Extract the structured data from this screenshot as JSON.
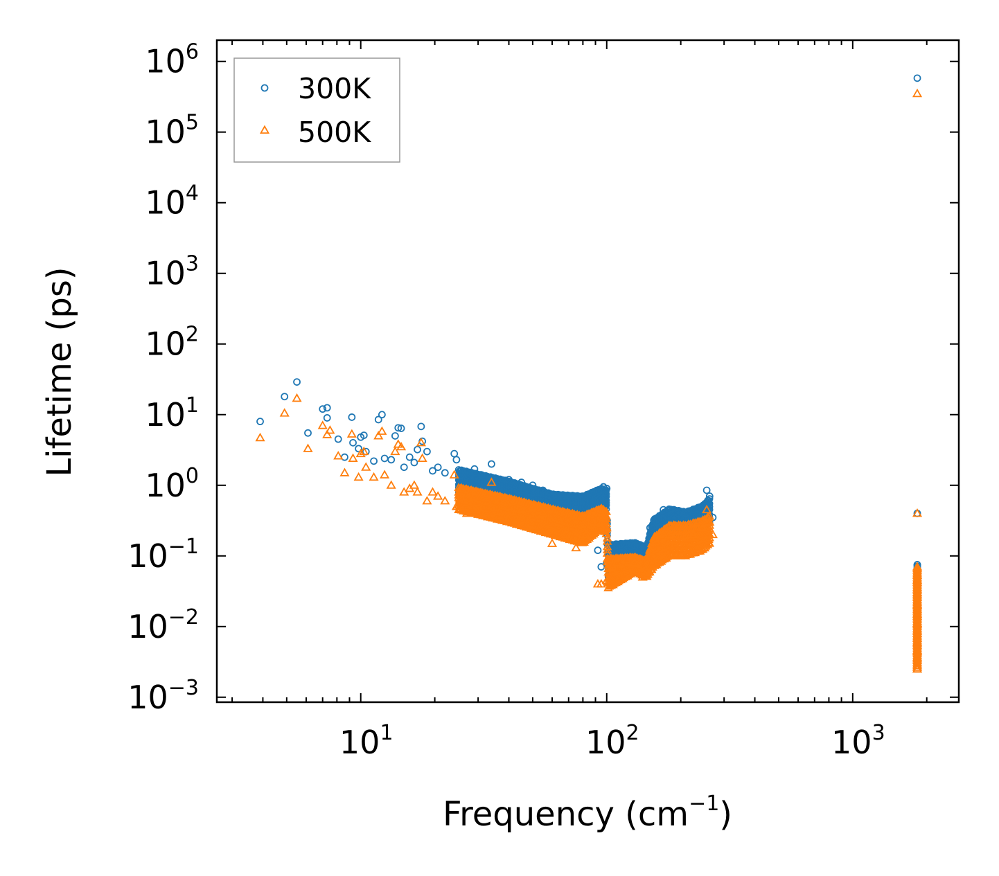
{
  "chart_data": {
    "type": "scatter",
    "xscale": "log",
    "yscale": "log",
    "xlabel": "Frequency (cm",
    "xlabel_sup": "−1",
    "xlabel_end": ")",
    "ylabel": "Lifetime (ps)",
    "xlim": [
      2.6,
      2700
    ],
    "ylim": [
      0.00085,
      2000000
    ],
    "x_ticks": [
      {
        "value": 10,
        "base": "10",
        "exp": "1"
      },
      {
        "value": 100,
        "base": "10",
        "exp": "2"
      },
      {
        "value": 1000,
        "base": "10",
        "exp": "3"
      }
    ],
    "y_ticks": [
      {
        "value": 0.001,
        "base": "10",
        "exp": "−3"
      },
      {
        "value": 0.01,
        "base": "10",
        "exp": "−2"
      },
      {
        "value": 0.1,
        "base": "10",
        "exp": "−1"
      },
      {
        "value": 1,
        "base": "10",
        "exp": "0"
      },
      {
        "value": 10,
        "base": "10",
        "exp": "1"
      },
      {
        "value": 100,
        "base": "10",
        "exp": "2"
      },
      {
        "value": 1000,
        "base": "10",
        "exp": "3"
      },
      {
        "value": 10000,
        "base": "10",
        "exp": "4"
      },
      {
        "value": 100000,
        "base": "10",
        "exp": "5"
      },
      {
        "value": 1000000,
        "base": "10",
        "exp": "6"
      }
    ],
    "legend": {
      "location": "upper-left"
    },
    "series": [
      {
        "name": "300K",
        "marker": "circle",
        "color": "#1f77b4",
        "points": [
          [
            3.9,
            8.0
          ],
          [
            4.9,
            18
          ],
          [
            5.5,
            29
          ],
          [
            6.1,
            5.5
          ],
          [
            7.0,
            12
          ],
          [
            7.3,
            12.5
          ],
          [
            7.3,
            9.0
          ],
          [
            8.1,
            4.5
          ],
          [
            8.6,
            2.5
          ],
          [
            9.2,
            9.2
          ],
          [
            9.3,
            4.0
          ],
          [
            9.8,
            3.3
          ],
          [
            10.0,
            4.8
          ],
          [
            10.3,
            5.1
          ],
          [
            10.5,
            3.0
          ],
          [
            11.3,
            2.2
          ],
          [
            11.8,
            8.5
          ],
          [
            12.2,
            10
          ],
          [
            12.5,
            2.4
          ],
          [
            13.3,
            2.3
          ],
          [
            13.8,
            5.0
          ],
          [
            14.2,
            6.5
          ],
          [
            14.6,
            6.4
          ],
          [
            15.0,
            1.8
          ],
          [
            15.8,
            2.5
          ],
          [
            16.5,
            2.1
          ],
          [
            17.0,
            3.2
          ],
          [
            17.6,
            6.8
          ],
          [
            17.8,
            4.2
          ],
          [
            18.6,
            3.0
          ],
          [
            19.6,
            1.6
          ],
          [
            20.6,
            1.8
          ],
          [
            22.0,
            1.5
          ],
          [
            24.0,
            2.8
          ],
          [
            24.5,
            2.3
          ],
          [
            27.0,
            1.5
          ],
          [
            29.0,
            1.7
          ],
          [
            31.0,
            1.4
          ],
          [
            34.0,
            2.0
          ],
          [
            36.0,
            1.2
          ],
          [
            40.0,
            1.2
          ],
          [
            45.0,
            1.1
          ],
          [
            50.0,
            1.0
          ],
          [
            55.0,
            0.85
          ],
          [
            60.0,
            0.7
          ],
          [
            68.0,
            0.6
          ],
          [
            75.0,
            0.55
          ],
          [
            82.0,
            0.5
          ],
          [
            88.0,
            0.45
          ],
          [
            93.0,
            0.8
          ],
          [
            97.0,
            0.95
          ],
          [
            100.0,
            0.9
          ],
          [
            92.0,
            0.12
          ],
          [
            95.0,
            0.07
          ],
          [
            100.0,
            0.08
          ],
          [
            105.0,
            0.1
          ],
          [
            110.0,
            0.14
          ],
          [
            120.0,
            0.15
          ],
          [
            130.0,
            0.14
          ],
          [
            140.0,
            0.09
          ],
          [
            150.0,
            0.25
          ],
          [
            160.0,
            0.3
          ],
          [
            170.0,
            0.45
          ],
          [
            180.0,
            0.45
          ],
          [
            195.0,
            0.4
          ],
          [
            210.0,
            0.4
          ],
          [
            225.0,
            0.35
          ],
          [
            245.0,
            0.5
          ],
          [
            255.0,
            0.85
          ],
          [
            262.0,
            0.7
          ],
          [
            270.0,
            0.35
          ],
          [
            1830,
            580000
          ],
          [
            1830,
            0.4
          ],
          [
            1830,
            0.075
          ],
          [
            1830,
            0.05
          ],
          [
            1830,
            0.035
          ],
          [
            1830,
            0.025
          ],
          [
            1830,
            0.018
          ],
          [
            1830,
            0.013
          ],
          [
            1830,
            0.009
          ],
          [
            1830,
            0.007
          ],
          [
            1830,
            0.005
          ],
          [
            1830,
            0.004
          ],
          [
            1830,
            0.003
          ]
        ],
        "band": [
          [
            25,
            0.8,
            1.8
          ],
          [
            40,
            0.7,
            1.2
          ],
          [
            60,
            0.4,
            0.8
          ],
          [
            80,
            0.35,
            0.75
          ],
          [
            95,
            0.55,
            0.95
          ],
          [
            100,
            0.45,
            0.9
          ],
          [
            101,
            0.05,
            0.16
          ],
          [
            130,
            0.11,
            0.16
          ],
          [
            145,
            0.08,
            0.14
          ],
          [
            155,
            0.16,
            0.35
          ],
          [
            180,
            0.22,
            0.5
          ],
          [
            210,
            0.2,
            0.45
          ],
          [
            245,
            0.25,
            0.55
          ],
          [
            262,
            0.3,
            0.7
          ]
        ]
      },
      {
        "name": "500K",
        "marker": "triangle",
        "color": "#ff7f0e",
        "points": [
          [
            3.9,
            4.7
          ],
          [
            4.9,
            10.5
          ],
          [
            5.5,
            17
          ],
          [
            6.1,
            3.3
          ],
          [
            7.0,
            7.0
          ],
          [
            7.3,
            5.2
          ],
          [
            7.5,
            6.0
          ],
          [
            8.1,
            2.6
          ],
          [
            8.6,
            1.5
          ],
          [
            9.2,
            5.3
          ],
          [
            9.3,
            2.4
          ],
          [
            9.8,
            1.3
          ],
          [
            10.0,
            2.8
          ],
          [
            10.3,
            3.0
          ],
          [
            10.5,
            1.8
          ],
          [
            11.3,
            1.3
          ],
          [
            11.8,
            5.0
          ],
          [
            12.2,
            5.8
          ],
          [
            12.5,
            1.4
          ],
          [
            13.3,
            1.0
          ],
          [
            13.8,
            3.0
          ],
          [
            14.2,
            3.8
          ],
          [
            14.6,
            3.5
          ],
          [
            15.0,
            0.8
          ],
          [
            15.8,
            0.9
          ],
          [
            16.5,
            1.0
          ],
          [
            17.0,
            0.8
          ],
          [
            17.6,
            4.0
          ],
          [
            17.8,
            2.4
          ],
          [
            18.6,
            0.6
          ],
          [
            19.6,
            0.8
          ],
          [
            20.6,
            0.7
          ],
          [
            22.0,
            0.6
          ],
          [
            24.0,
            1.4
          ],
          [
            24.5,
            0.5
          ],
          [
            27.0,
            0.4
          ],
          [
            29.0,
            0.7
          ],
          [
            31.0,
            0.4
          ],
          [
            34.0,
            1.1
          ],
          [
            36.0,
            0.7
          ],
          [
            40.0,
            0.5
          ],
          [
            45.0,
            0.45
          ],
          [
            50.0,
            0.5
          ],
          [
            55.0,
            0.4
          ],
          [
            60.0,
            0.15
          ],
          [
            68.0,
            0.2
          ],
          [
            75.0,
            0.13
          ],
          [
            82.0,
            0.2
          ],
          [
            88.0,
            0.25
          ],
          [
            93.0,
            0.3
          ],
          [
            97.0,
            0.45
          ],
          [
            100.0,
            0.25
          ],
          [
            92.0,
            0.04
          ],
          [
            95.0,
            0.04
          ],
          [
            100.0,
            0.045
          ],
          [
            105.0,
            0.07
          ],
          [
            110.0,
            0.08
          ],
          [
            120.0,
            0.09
          ],
          [
            130.0,
            0.08
          ],
          [
            140.0,
            0.05
          ],
          [
            150.0,
            0.12
          ],
          [
            160.0,
            0.15
          ],
          [
            170.0,
            0.2
          ],
          [
            180.0,
            0.2
          ],
          [
            195.0,
            0.15
          ],
          [
            210.0,
            0.18
          ],
          [
            225.0,
            0.2
          ],
          [
            245.0,
            0.25
          ],
          [
            255.0,
            0.45
          ],
          [
            262.0,
            0.3
          ],
          [
            270.0,
            0.2
          ],
          [
            1830,
            350000
          ],
          [
            1830,
            0.4
          ],
          [
            1830,
            0.07
          ],
          [
            1830,
            0.045
          ],
          [
            1830,
            0.03
          ],
          [
            1830,
            0.02
          ],
          [
            1830,
            0.015
          ],
          [
            1830,
            0.011
          ],
          [
            1830,
            0.008
          ],
          [
            1830,
            0.006
          ],
          [
            1830,
            0.0045
          ],
          [
            1830,
            0.0035
          ],
          [
            1830,
            0.0025
          ]
        ],
        "band": [
          [
            25,
            0.45,
            1.0
          ],
          [
            40,
            0.3,
            0.7
          ],
          [
            60,
            0.2,
            0.5
          ],
          [
            80,
            0.15,
            0.4
          ],
          [
            95,
            0.25,
            0.5
          ],
          [
            100,
            0.2,
            0.45
          ],
          [
            101,
            0.035,
            0.1
          ],
          [
            130,
            0.06,
            0.1
          ],
          [
            145,
            0.05,
            0.09
          ],
          [
            155,
            0.07,
            0.2
          ],
          [
            180,
            0.1,
            0.3
          ],
          [
            210,
            0.1,
            0.3
          ],
          [
            245,
            0.12,
            0.35
          ],
          [
            262,
            0.15,
            0.4
          ]
        ]
      }
    ],
    "high_freq_column": {
      "x": 1830,
      "y_min": 0.0025,
      "y_max": 0.075
    }
  }
}
